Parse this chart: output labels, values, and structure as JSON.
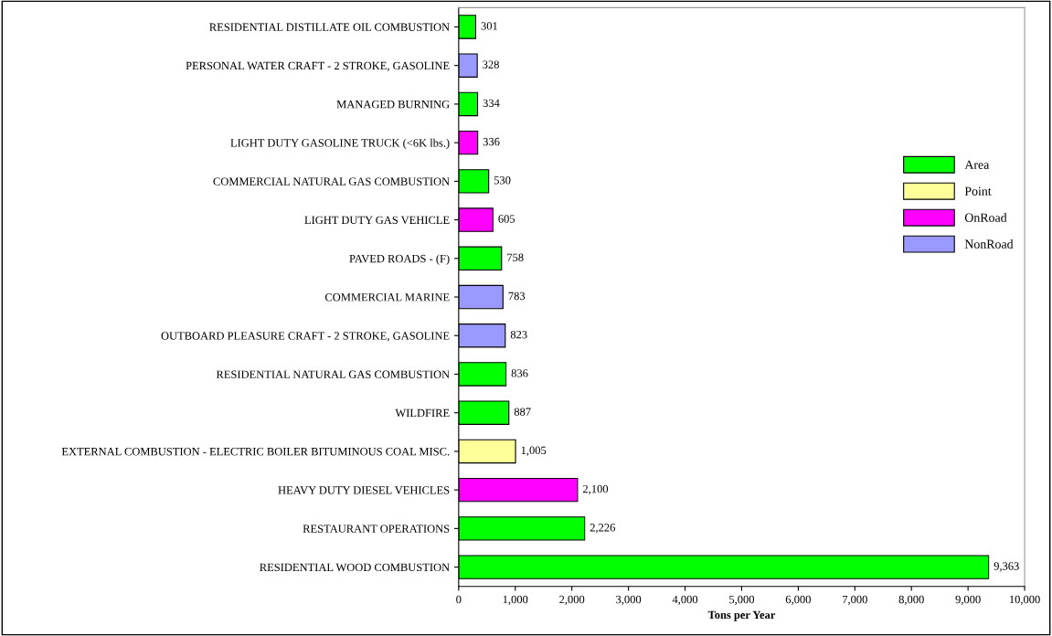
{
  "chart_data": {
    "type": "bar",
    "orientation": "horizontal",
    "xlabel": "Tons per Year",
    "categories": [
      "RESIDENTIAL DISTILLATE OIL COMBUSTION",
      "PERSONAL WATER CRAFT - 2 STROKE, GASOLINE",
      "MANAGED BURNING",
      "LIGHT DUTY GASOLINE TRUCK (<6K lbs.)",
      "COMMERCIAL NATURAL GAS COMBUSTION",
      "LIGHT DUTY GAS VEHICLE",
      "PAVED ROADS - (F)",
      "COMMERCIAL MARINE",
      "OUTBOARD PLEASURE CRAFT - 2 STROKE, GASOLINE",
      "RESIDENTIAL NATURAL GAS COMBUSTION",
      "WILDFIRE",
      "EXTERNAL COMBUSTION - ELECTRIC BOILER BITUMINOUS COAL MISC.",
      "HEAVY DUTY DIESEL VEHICLES",
      "RESTAURANT OPERATIONS",
      "RESIDENTIAL WOOD COMBUSTION"
    ],
    "series": [
      {
        "name": "Area",
        "color": "#00ff00",
        "values": [
          301,
          null,
          334,
          null,
          530,
          null,
          758,
          null,
          null,
          836,
          887,
          null,
          null,
          2226,
          9363
        ],
        "value_labels": [
          "301",
          null,
          "334",
          null,
          "530",
          null,
          "758",
          null,
          null,
          "836",
          "887",
          null,
          null,
          "2,226",
          "9,363"
        ]
      },
      {
        "name": "Point",
        "color": "#ffff99",
        "values": [
          null,
          null,
          null,
          null,
          null,
          null,
          null,
          null,
          null,
          null,
          null,
          1005,
          null,
          null,
          null
        ],
        "value_labels": [
          null,
          null,
          null,
          null,
          null,
          null,
          null,
          null,
          null,
          null,
          null,
          "1,005",
          null,
          null,
          null
        ]
      },
      {
        "name": "OnRoad",
        "color": "#ff00ff",
        "values": [
          null,
          null,
          null,
          336,
          null,
          605,
          null,
          null,
          null,
          null,
          null,
          null,
          2100,
          null,
          null
        ],
        "value_labels": [
          null,
          null,
          null,
          "336",
          null,
          "605",
          null,
          null,
          null,
          null,
          null,
          null,
          "2,100",
          null,
          null
        ]
      },
      {
        "name": "NonRoad",
        "color": "#9999ff",
        "values": [
          null,
          328,
          null,
          null,
          null,
          null,
          null,
          783,
          823,
          null,
          null,
          null,
          null,
          null,
          null
        ],
        "value_labels": [
          null,
          "328",
          null,
          null,
          null,
          null,
          null,
          "783",
          "823",
          null,
          null,
          null,
          null,
          null,
          null
        ]
      }
    ],
    "xlim": [
      0,
      10000
    ],
    "xticks": [
      0,
      {
        "value": 1000,
        "label": "1,000"
      },
      {
        "value": 2000,
        "label": "2,000"
      },
      {
        "value": 3000,
        "label": "3,000"
      },
      {
        "value": 4000,
        "label": "4,000"
      },
      {
        "value": 5000,
        "label": "5,000"
      },
      {
        "value": 6000,
        "label": "6,000"
      },
      {
        "value": 7000,
        "label": "7,000"
      },
      {
        "value": 8000,
        "label": "8,000"
      },
      {
        "value": 9000,
        "label": "9,000"
      },
      {
        "value": 10000,
        "label": "10,000"
      }
    ],
    "legend": "right",
    "grid": false
  }
}
